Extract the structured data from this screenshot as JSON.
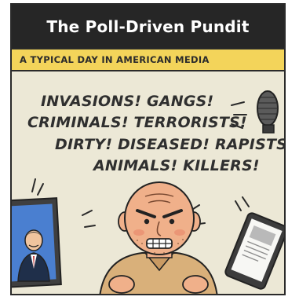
{
  "comic": {
    "title": "The Poll-Driven Pundit",
    "subtitle": "A TYPICAL DAY IN AMERICAN MEDIA",
    "shout_lines": [
      "INVASIONS! GANGS!",
      "CRIMINALS! TERRORISTS!",
      "DIRTY! DISEASED! RAPISTS!",
      "ANIMALS! KILLERS!"
    ]
  },
  "colors": {
    "title_bg": "#262626",
    "subtitle_bg": "#f3d45a",
    "panel_bg": "#ece8d6",
    "skin": "#f0b08a",
    "shirt": "#d9b07a"
  }
}
